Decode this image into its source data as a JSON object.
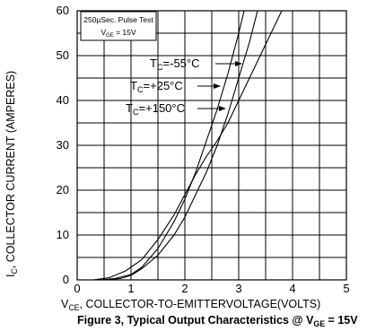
{
  "chart_data": {
    "type": "line",
    "xlim": [
      0,
      5
    ],
    "ylim": [
      0,
      60
    ],
    "x_ticks": [
      "0",
      "1",
      "2",
      "3",
      "4",
      "5"
    ],
    "y_ticks": [
      "0",
      "10",
      "20",
      "30",
      "40",
      "50",
      "60"
    ],
    "grid": true,
    "xlabel": {
      "prefix": "V",
      "sub": "CE",
      "rest": ", COLLECTOR-TO-EMITTERVOLTAGE(VOLTS)"
    },
    "ylabel": {
      "prefix": "I",
      "sub": "C",
      "rest": ", COLLECTOR CURRENT (AMPERES)"
    },
    "caption": {
      "text": "Figure 3, Typical Output Characteristics @ V",
      "sub": "GE",
      "tail": " = 15V"
    },
    "info_box": {
      "line1": "250µSec. Pulse Test",
      "line2_prefix": "V",
      "line2_sub": "GE",
      "line2_rest": " = 15V"
    },
    "series": [
      {
        "name": "TC=-55°C",
        "label_prefix": "T",
        "label_sub": "C",
        "label_rest": "=-55°C",
        "points": [
          [
            0.5,
            0
          ],
          [
            0.8,
            0.3
          ],
          [
            1.0,
            1.0
          ],
          [
            1.2,
            2.5
          ],
          [
            1.5,
            5.5
          ],
          [
            1.8,
            10
          ],
          [
            2.0,
            14
          ],
          [
            2.2,
            19
          ],
          [
            2.4,
            24
          ],
          [
            2.6,
            30
          ],
          [
            2.8,
            37
          ],
          [
            3.0,
            45
          ],
          [
            3.2,
            53
          ],
          [
            3.35,
            60
          ]
        ]
      },
      {
        "name": "TC=+25°C",
        "label_prefix": "T",
        "label_sub": "C",
        "label_rest": "=+25°C",
        "points": [
          [
            0.4,
            0
          ],
          [
            0.7,
            0.3
          ],
          [
            1.0,
            1.2
          ],
          [
            1.2,
            2.8
          ],
          [
            1.5,
            7
          ],
          [
            1.8,
            13
          ],
          [
            2.0,
            18
          ],
          [
            2.2,
            24
          ],
          [
            2.4,
            31
          ],
          [
            2.6,
            38
          ],
          [
            2.8,
            46
          ],
          [
            3.0,
            55
          ],
          [
            3.1,
            60
          ]
        ]
      },
      {
        "name": "TC=+150°C",
        "label_prefix": "T",
        "label_sub": "C",
        "label_rest": "=+150°C",
        "points": [
          [
            0.3,
            0
          ],
          [
            0.6,
            0.5
          ],
          [
            0.9,
            2.0
          ],
          [
            1.2,
            4.5
          ],
          [
            1.5,
            9
          ],
          [
            1.8,
            14.5
          ],
          [
            2.0,
            19
          ],
          [
            2.2,
            23.5
          ],
          [
            2.4,
            27.5
          ],
          [
            2.6,
            31
          ],
          [
            2.8,
            35
          ],
          [
            3.0,
            40
          ],
          [
            3.2,
            45
          ],
          [
            3.4,
            50
          ],
          [
            3.6,
            55
          ],
          [
            3.8,
            60
          ]
        ]
      }
    ]
  }
}
